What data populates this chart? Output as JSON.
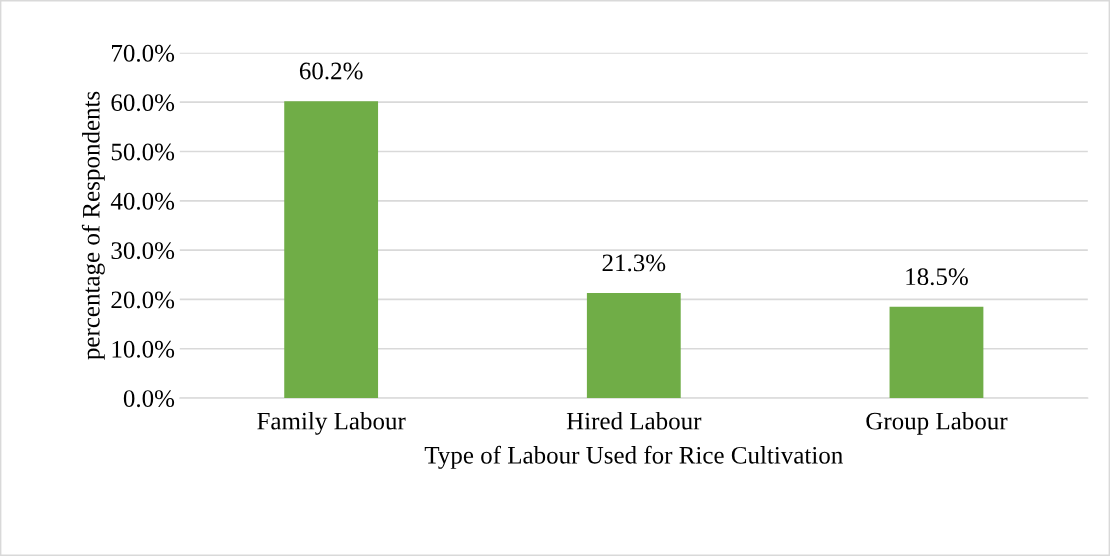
{
  "chart_data": {
    "type": "bar",
    "xlabel": "Type of Labour Used for Rice Cultivation",
    "ylabel": "percentage of Respondents",
    "categories": [
      "Family Labour",
      "Hired Labour",
      "Group Labour"
    ],
    "values": [
      60.2,
      21.3,
      18.5
    ],
    "color": "#70ad47",
    "value_labels": [
      "60.2%",
      "21.3%",
      "18.5%"
    ],
    "ylim": [
      0,
      70
    ],
    "yticks": [
      {
        "value": 0,
        "label": "0.0%"
      },
      {
        "value": 10,
        "label": "10.0%"
      },
      {
        "value": 20,
        "label": "20.0%"
      },
      {
        "value": 30,
        "label": "30.0%"
      },
      {
        "value": 40,
        "label": "40.0%"
      },
      {
        "value": 50,
        "label": "50.0%"
      },
      {
        "value": 60,
        "label": "60.0%"
      },
      {
        "value": 70,
        "label": "70.0%"
      }
    ],
    "grid": "y",
    "legend": false
  }
}
